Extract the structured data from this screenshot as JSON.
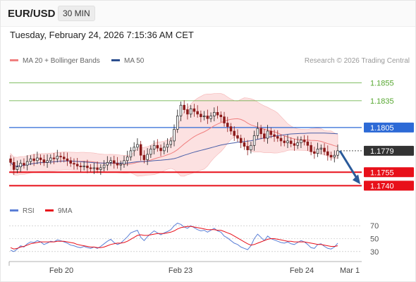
{
  "header": {
    "pair": "EUR/USD",
    "timeframe": "30 MIN"
  },
  "date_line": "Tuesday, February 24, 2026 7:15:36 AM CET",
  "legend": {
    "ma20_label": "MA 20 + Bollinger Bands",
    "ma50_label": "MA 50",
    "rsi_label": "RSI",
    "rsi9_label": "9MA"
  },
  "credit": "Research © 2026 Trading Central",
  "colors": {
    "ma20": "#f08080",
    "bands": "#fbd9d9",
    "ma50": "#4a5fa8",
    "up": "#1a1a1a",
    "down": "#8b1a1a",
    "target_green": "#58a832",
    "pivot_blue": "#2d6ad6",
    "support_red": "#e8101a",
    "current": "#333333",
    "rsi": "#5b7fd6",
    "rsi9": "#e8101a",
    "arrow": "#2a5a9a"
  },
  "chart_data": {
    "type": "candlestick",
    "ylim": [
      1.173,
      1.1868
    ],
    "x_ticks": [
      "Feb 20",
      "Feb 23",
      "Feb 24",
      "Mar 1"
    ],
    "price_levels": [
      {
        "value": 1.1855,
        "label": "1.1855",
        "style": "target"
      },
      {
        "value": 1.1835,
        "label": "1.1835",
        "style": "target"
      },
      {
        "value": 1.1805,
        "label": "1.1805",
        "style": "pivot"
      },
      {
        "value": 1.1779,
        "label": "1.1779",
        "style": "current"
      },
      {
        "value": 1.1755,
        "label": "1.1755",
        "style": "support"
      },
      {
        "value": 1.174,
        "label": "1.1740",
        "style": "support"
      }
    ],
    "arrow": {
      "from": 1.1779,
      "to": 1.174
    },
    "closes": [
      1.1766,
      1.1758,
      1.1761,
      1.1765,
      1.1763,
      1.1767,
      1.177,
      1.1768,
      1.1771,
      1.1769,
      1.1766,
      1.1768,
      1.1771,
      1.177,
      1.1773,
      1.1772,
      1.177,
      1.1768,
      1.1765,
      1.1764,
      1.1762,
      1.1761,
      1.1762,
      1.176,
      1.1759,
      1.176,
      1.1758,
      1.176,
      1.1763,
      1.1766,
      1.1768,
      1.1765,
      1.1763,
      1.1764,
      1.1768,
      1.1772,
      1.1779,
      1.1783,
      1.1786,
      1.1774,
      1.1769,
      1.1775,
      1.1781,
      1.1785,
      1.1782,
      1.1779,
      1.1783,
      1.1786,
      1.179,
      1.1803,
      1.1818,
      1.183,
      1.1825,
      1.182,
      1.1826,
      1.1823,
      1.182,
      1.1817,
      1.1818,
      1.1815,
      1.1818,
      1.1822,
      1.1819,
      1.1817,
      1.181,
      1.1806,
      1.1801,
      1.1796,
      1.1793,
      1.1788,
      1.1784,
      1.178,
      1.1785,
      1.1796,
      1.1804,
      1.1798,
      1.1793,
      1.1801,
      1.1797,
      1.1795,
      1.1793,
      1.179,
      1.1788,
      1.179,
      1.1787,
      1.1785,
      1.1788,
      1.1791,
      1.1789,
      1.1785,
      1.1778,
      1.1776,
      1.1781,
      1.1782,
      1.1778,
      1.1774,
      1.1772,
      1.1774,
      1.1779
    ],
    "rsi": [
      32,
      30,
      34,
      39,
      37,
      42,
      45,
      44,
      47,
      45,
      41,
      43,
      46,
      45,
      48,
      47,
      45,
      43,
      40,
      39,
      37,
      36,
      38,
      36,
      35,
      37,
      35,
      38,
      42,
      46,
      49,
      44,
      41,
      43,
      48,
      53,
      59,
      61,
      63,
      52,
      47,
      53,
      58,
      62,
      59,
      56,
      59,
      61,
      64,
      70,
      74,
      72,
      68,
      66,
      70,
      67,
      64,
      62,
      63,
      60,
      63,
      66,
      62,
      60,
      54,
      51,
      47,
      43,
      41,
      37,
      35,
      33,
      39,
      50,
      57,
      52,
      47,
      54,
      50,
      48,
      46,
      44,
      43,
      45,
      42,
      41,
      44,
      47,
      45,
      41,
      36,
      35,
      41,
      42,
      38,
      35,
      34,
      37,
      43
    ],
    "rsi9": [
      36,
      34,
      35,
      37,
      38,
      40,
      42,
      43,
      44,
      45,
      45,
      45,
      45,
      45,
      46,
      46,
      46,
      45,
      44,
      43,
      41,
      40,
      39,
      38,
      37,
      37,
      36,
      36,
      37,
      39,
      41,
      42,
      43,
      43,
      44,
      46,
      49,
      52,
      55,
      56,
      55,
      55,
      56,
      57,
      58,
      58,
      58,
      59,
      60,
      62,
      65,
      67,
      68,
      69,
      69,
      68,
      67,
      66,
      65,
      64,
      64,
      64,
      63,
      63,
      61,
      59,
      57,
      54,
      51,
      48,
      45,
      42,
      40,
      41,
      43,
      45,
      47,
      49,
      50,
      50,
      49,
      48,
      47,
      46,
      46,
      45,
      45,
      45,
      45,
      44,
      43,
      42,
      41,
      41,
      40,
      39,
      38,
      38,
      39
    ],
    "rsi_ticks": [
      70,
      50,
      30
    ]
  }
}
